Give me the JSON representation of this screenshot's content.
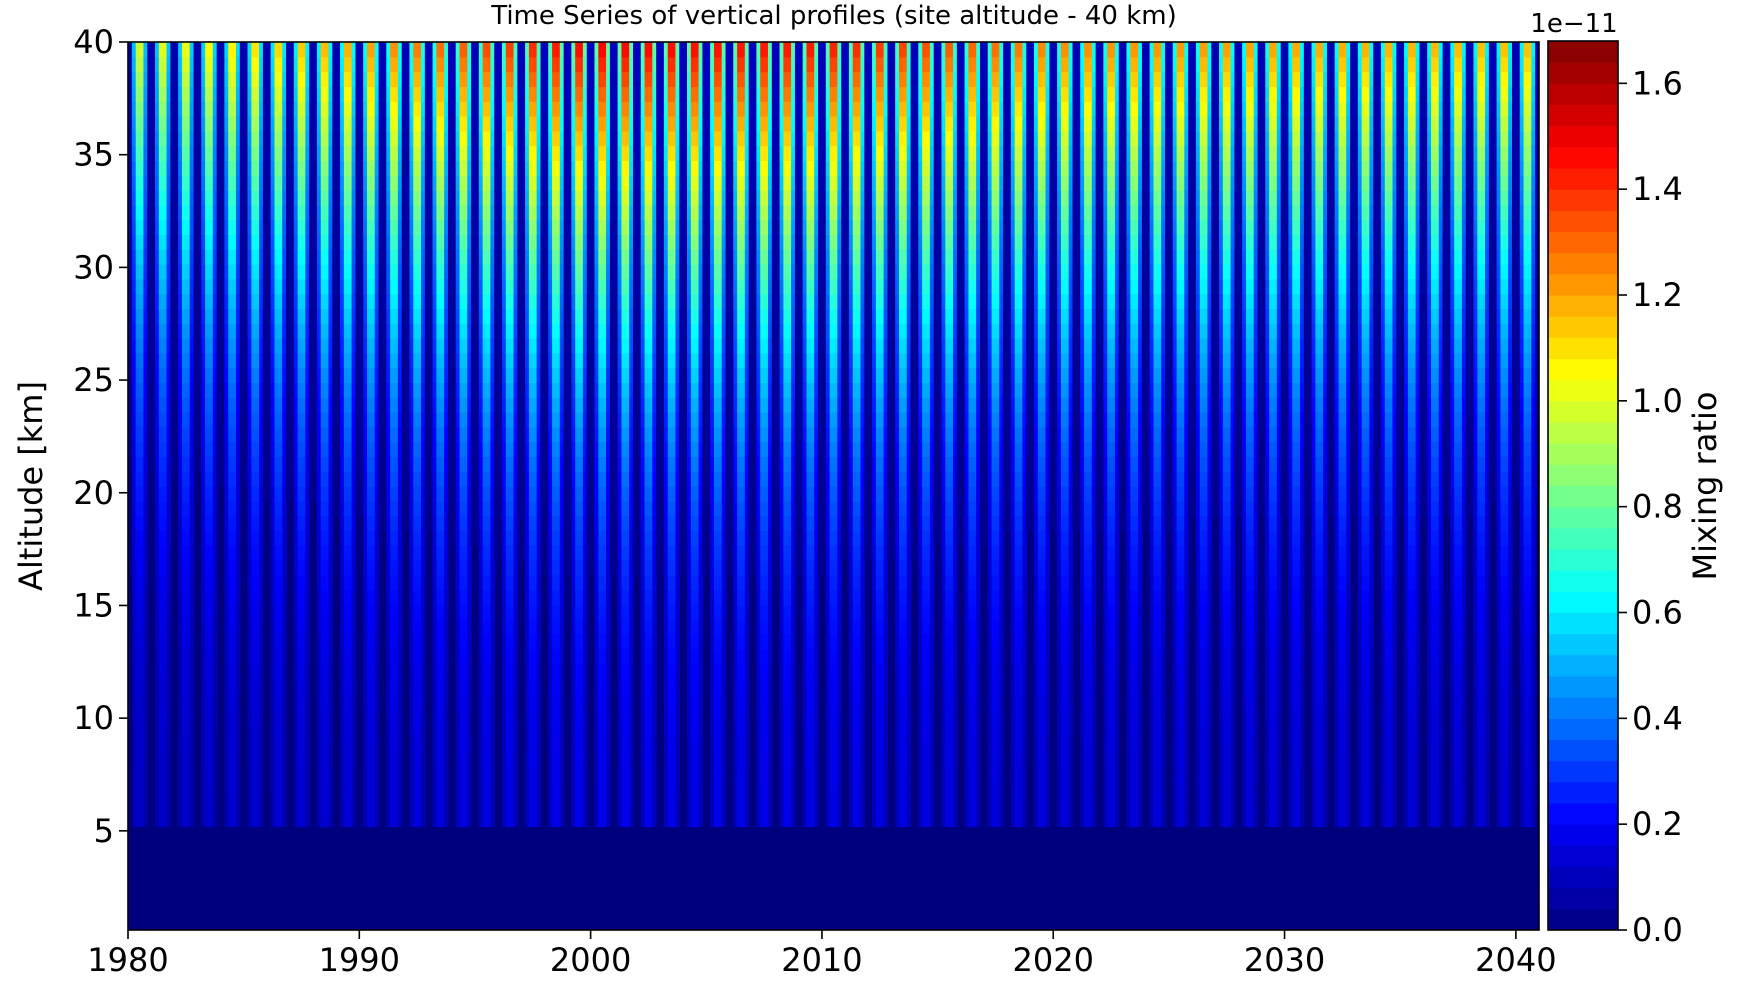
{
  "chart_data": {
    "type": "heatmap",
    "title": "Time Series of vertical profiles (site altitude - 40 km)",
    "xlabel": "",
    "ylabel": "Altitude [km]",
    "xlim": [
      1980,
      2041
    ],
    "ylim": [
      0.6,
      40
    ],
    "x_ticks": [
      "1980",
      "1990",
      "2000",
      "2010",
      "2020",
      "2030",
      "2040"
    ],
    "y_ticks": [
      "5",
      "10",
      "15",
      "20",
      "25",
      "30",
      "35",
      "40"
    ],
    "x_range": [
      1980,
      2041
    ],
    "cycles": 61,
    "colorbar": {
      "label": "Mixing ratio",
      "offset_text": "1e−11",
      "range": [
        0.0,
        1.68
      ],
      "ticks": [
        "0.0",
        "0.2",
        "0.4",
        "0.6",
        "0.8",
        "1.0",
        "1.2",
        "1.4",
        "1.6"
      ],
      "colormap": "jet",
      "levels": 42
    },
    "peak_value_by_decade": [
      {
        "year": 1980,
        "value": 1.05
      },
      {
        "year": 1990,
        "value": 1.3
      },
      {
        "year": 2000,
        "value": 1.6
      },
      {
        "year": 2010,
        "value": 1.55
      },
      {
        "year": 2020,
        "value": 1.35
      },
      {
        "year": 2030,
        "value": 1.3
      },
      {
        "year": 2040,
        "value": 1.25
      }
    ],
    "min_altitude_of_signal_km": 5.5,
    "colors": {
      "background": "#00007f",
      "jet_low": "#00007f",
      "jet_high": "#7f0000"
    }
  }
}
